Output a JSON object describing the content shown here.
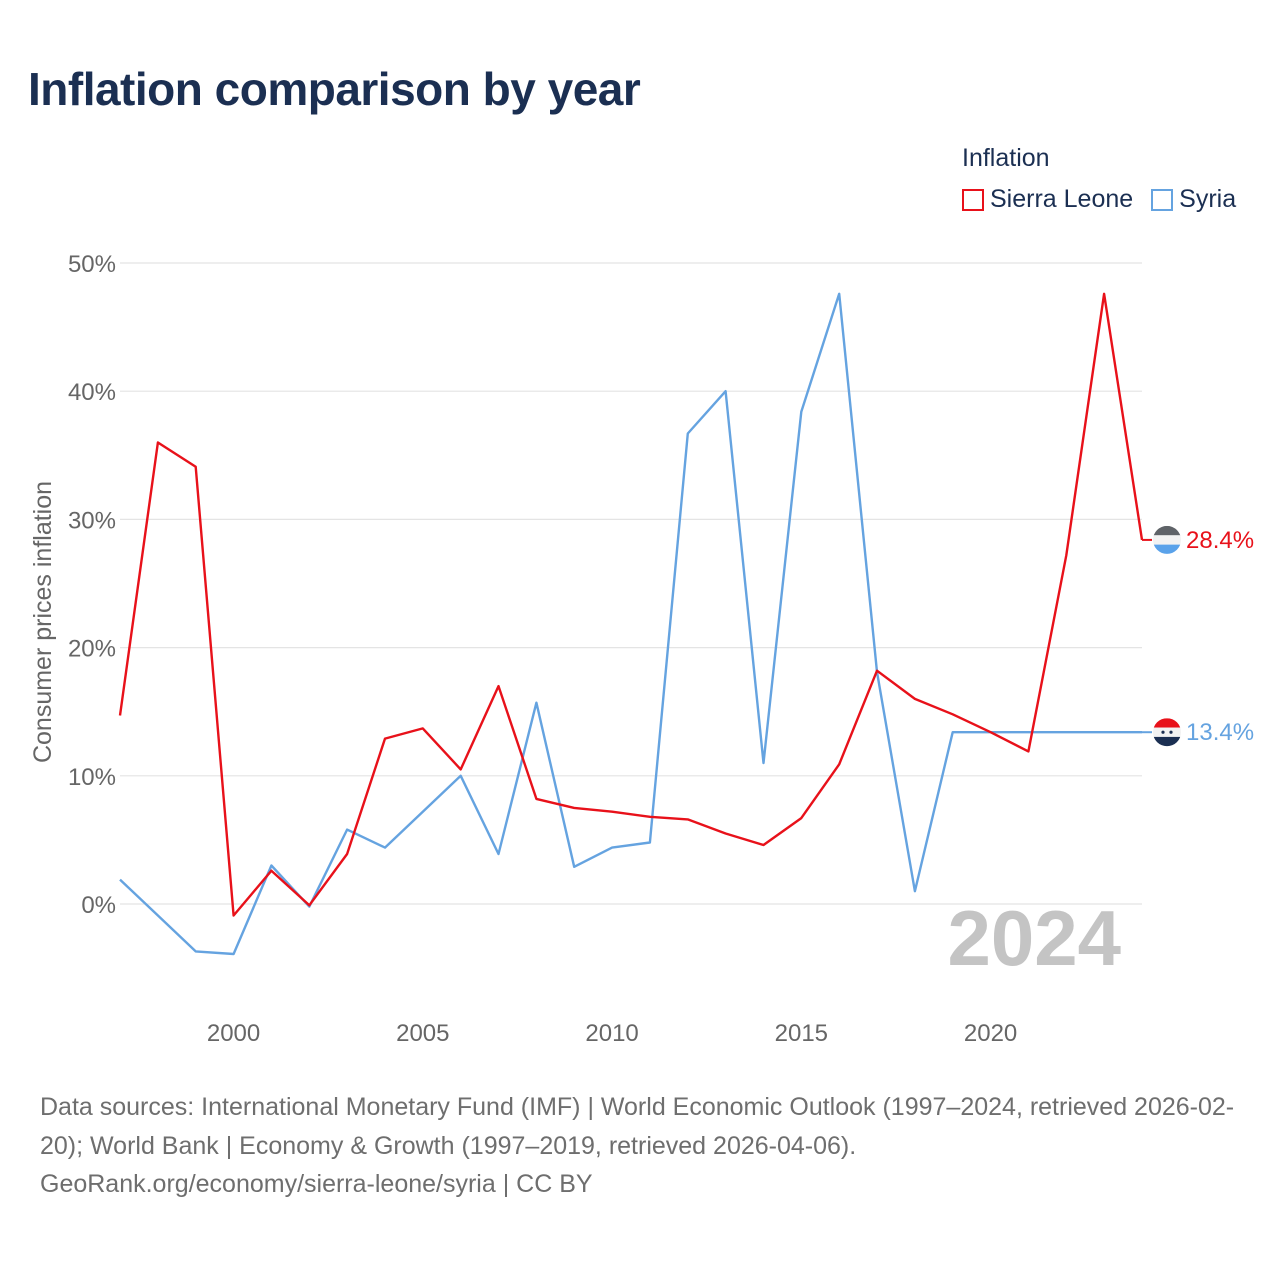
{
  "title": "Inflation comparison by year",
  "legend": {
    "title": "Inflation",
    "items": [
      {
        "label": "Sierra Leone",
        "color": "#e8111a"
      },
      {
        "label": "Syria",
        "color": "#65a3e0"
      }
    ]
  },
  "chart_data": {
    "type": "line",
    "title": "Inflation comparison by year",
    "xlabel": "",
    "ylabel": "Consumer prices inflation",
    "xlim": [
      1997,
      2024
    ],
    "ylim": [
      -8,
      52
    ],
    "y_ticks": [
      0,
      10,
      20,
      30,
      40,
      50
    ],
    "y_tick_labels": [
      "0%",
      "10%",
      "20%",
      "30%",
      "40%",
      "50%"
    ],
    "x_ticks": [
      2000,
      2005,
      2010,
      2015,
      2020
    ],
    "x_tick_labels": [
      "2000",
      "2005",
      "2010",
      "2015",
      "2020"
    ],
    "grid": true,
    "year_watermark": "2024",
    "series": [
      {
        "name": "Sierra Leone",
        "color": "#e8111a",
        "end_label": "28.4%",
        "flag": "sierra-leone-flag-icon",
        "x": [
          1997,
          1998,
          1999,
          2000,
          2001,
          2002,
          2003,
          2004,
          2005,
          2006,
          2007,
          2008,
          2009,
          2010,
          2011,
          2012,
          2013,
          2014,
          2015,
          2016,
          2017,
          2018,
          2019,
          2020,
          2021,
          2022,
          2023,
          2024
        ],
        "values": [
          14.7,
          36.0,
          34.1,
          -0.9,
          2.6,
          -0.1,
          3.9,
          12.9,
          13.7,
          10.5,
          17.0,
          8.2,
          7.5,
          7.2,
          6.8,
          6.6,
          5.5,
          4.6,
          6.7,
          10.9,
          18.2,
          16.0,
          14.8,
          13.4,
          11.9,
          27.2,
          47.6,
          28.4
        ]
      },
      {
        "name": "Syria",
        "color": "#65a3e0",
        "end_label": "13.4%",
        "flag": "syria-flag-icon",
        "x": [
          1997,
          1998,
          1999,
          2000,
          2001,
          2002,
          2003,
          2004,
          2005,
          2006,
          2007,
          2008,
          2009,
          2010,
          2011,
          2012,
          2013,
          2014,
          2015,
          2016,
          2017,
          2018,
          2019,
          2020,
          2021,
          2022,
          2023,
          2024
        ],
        "values": [
          1.9,
          -0.9,
          -3.7,
          -3.9,
          3.0,
          -0.2,
          5.8,
          4.4,
          7.2,
          10.0,
          3.9,
          15.7,
          2.9,
          4.4,
          4.8,
          36.7,
          40.0,
          11.0,
          38.4,
          47.6,
          18.1,
          1.0,
          13.4,
          13.4,
          13.4,
          13.4,
          13.4,
          13.4
        ]
      }
    ]
  },
  "footer": {
    "source_text": "Data sources: International Monetary Fund (IMF) | World Economic Outlook (1997–2024, retrieved 2026-02-20); World Bank | Economy & Growth (1997–2019, retrieved 2026-04-06).",
    "credit_text": "GeoRank.org/economy/sierra-leone/syria | CC BY"
  }
}
